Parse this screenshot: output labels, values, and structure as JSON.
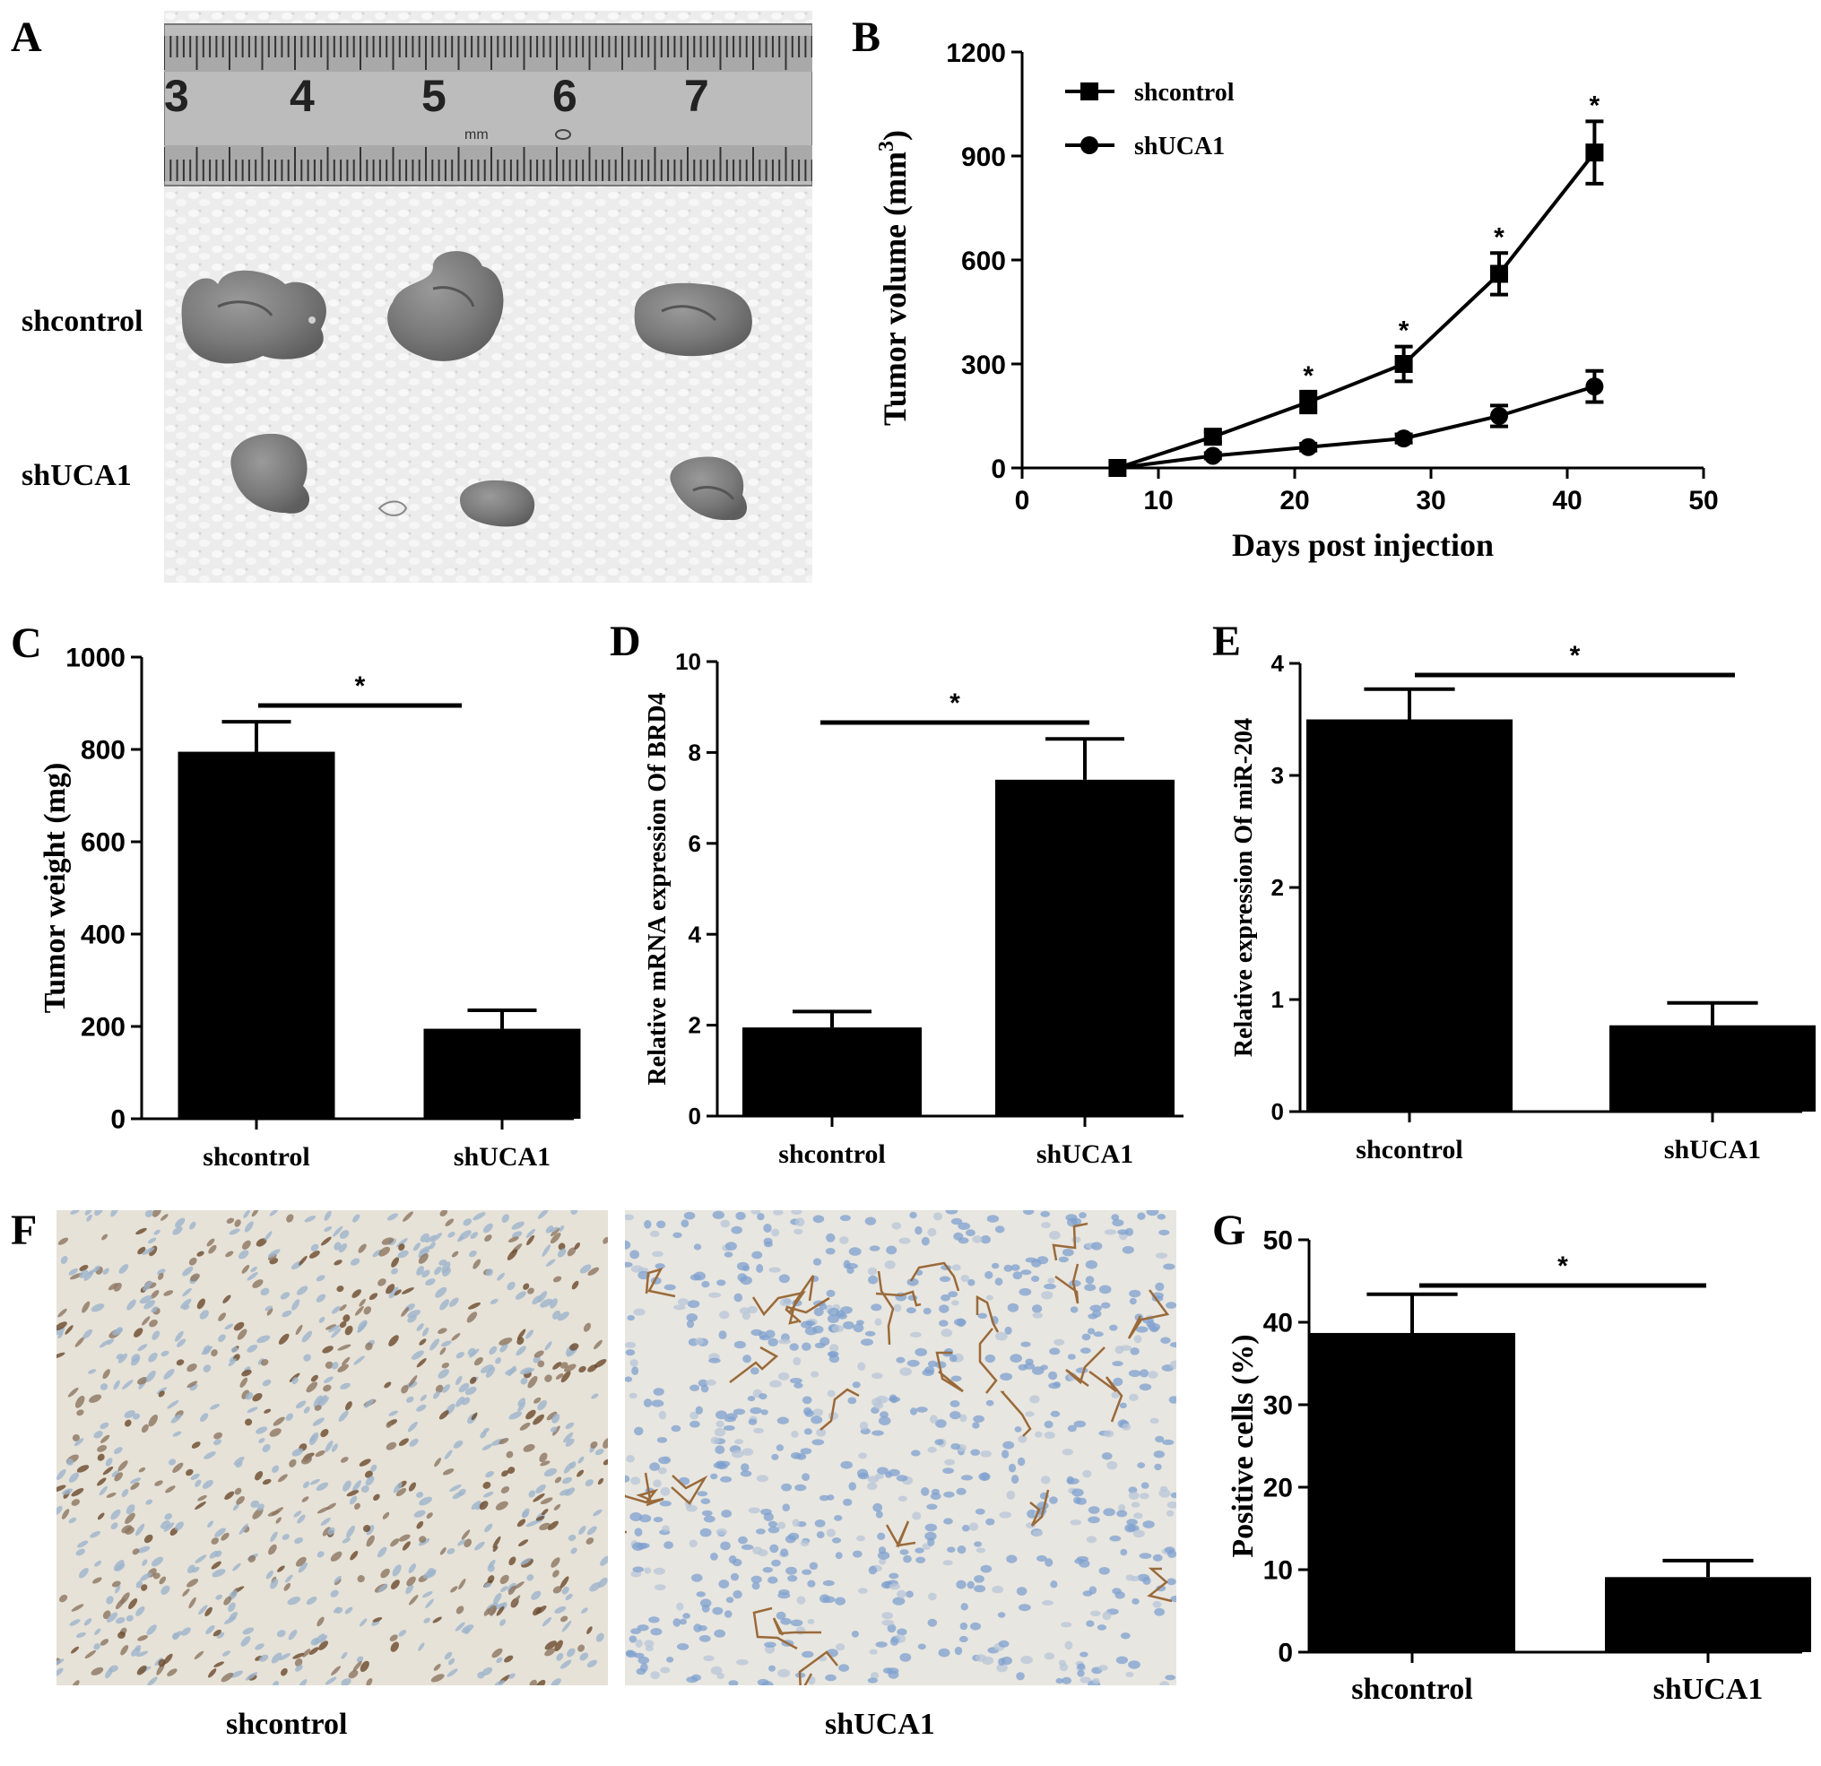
{
  "panel_labels": [
    "A",
    "B",
    "C",
    "D",
    "E",
    "F",
    "G"
  ],
  "groups": [
    "shcontrol",
    "shUCA1"
  ],
  "photo_a": {
    "ruler_numbers": [
      "3",
      "4",
      "5",
      "6",
      "7"
    ],
    "ruler_unit": "mm",
    "row_labels": [
      "shcontrol",
      "shUCA1"
    ]
  },
  "photo_f": {
    "captions": [
      "shcontrol",
      "shUCA1"
    ]
  },
  "chart_data": [
    {
      "panel": "B",
      "type": "line",
      "xlabel": "Days post injection",
      "ylabel": "Tumor volume (mm",
      "ylabel_sup": "3",
      "ylabel_end": ")",
      "xlim": [
        0,
        50
      ],
      "ylim": [
        0,
        1200
      ],
      "xticks": [
        0,
        10,
        20,
        30,
        40,
        50
      ],
      "yticks": [
        0,
        300,
        600,
        900,
        1200
      ],
      "legend_position": "top-left",
      "x": [
        7,
        14,
        21,
        28,
        35,
        42
      ],
      "series": [
        {
          "name": "shcontrol",
          "marker": "square",
          "values": [
            0,
            90,
            190,
            300,
            560,
            910
          ],
          "errors": [
            0,
            15,
            30,
            50,
            60,
            90
          ]
        },
        {
          "name": "shUCA1",
          "marker": "circle",
          "values": [
            0,
            35,
            60,
            85,
            150,
            235
          ],
          "errors": [
            0,
            8,
            10,
            12,
            30,
            45
          ]
        }
      ],
      "significance": [
        {
          "x": 21,
          "label": "*"
        },
        {
          "x": 28,
          "label": "*"
        },
        {
          "x": 35,
          "label": "*"
        },
        {
          "x": 42,
          "label": "*"
        }
      ]
    },
    {
      "panel": "C",
      "type": "bar",
      "categories": [
        "shcontrol",
        "shUCA1"
      ],
      "values": [
        795,
        195
      ],
      "errors": [
        65,
        40
      ],
      "ylabel": "Tumor weight (mg)",
      "ylim": [
        0,
        1000
      ],
      "yticks": [
        0,
        200,
        400,
        600,
        800,
        1000
      ],
      "significance": "*"
    },
    {
      "panel": "D",
      "type": "bar",
      "categories": [
        "shcontrol",
        "shUCA1"
      ],
      "values": [
        1.95,
        7.4
      ],
      "errors": [
        0.35,
        0.9
      ],
      "ylabel": "Relative mRNA expression Of BRD4",
      "ylim": [
        0,
        10
      ],
      "yticks": [
        0,
        2,
        4,
        6,
        8,
        10
      ],
      "significance": "*"
    },
    {
      "panel": "E",
      "type": "bar",
      "categories": [
        "shcontrol",
        "shUCA1"
      ],
      "values": [
        3.5,
        0.77
      ],
      "errors": [
        0.27,
        0.2
      ],
      "ylabel": "Relative expression Of miR-204",
      "ylim": [
        0,
        4
      ],
      "yticks": [
        0,
        1,
        2,
        3,
        4
      ],
      "significance": "*"
    },
    {
      "panel": "G",
      "type": "bar",
      "categories": [
        "shcontrol",
        "shUCA1"
      ],
      "values": [
        38.7,
        9.1
      ],
      "errors": [
        4.7,
        2.0
      ],
      "ylabel": "Positive cells (%)",
      "ylim": [
        0,
        50
      ],
      "yticks": [
        0,
        10,
        20,
        30,
        40,
        50
      ],
      "significance": "*"
    }
  ]
}
